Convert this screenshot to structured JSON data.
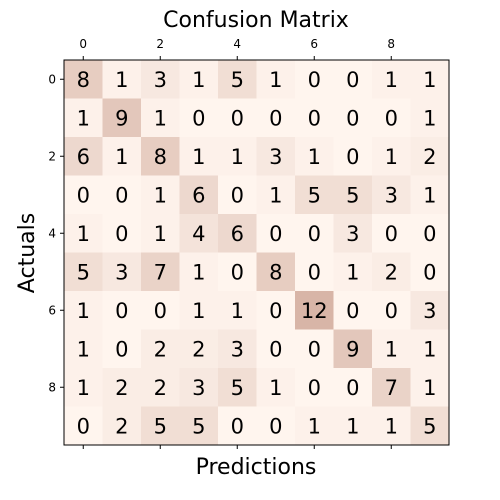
{
  "chart_data": {
    "type": "heatmap",
    "title": "Confusion Matrix",
    "xlabel": "Predictions",
    "ylabel": "Actuals",
    "x_ticks": [
      "0",
      "2",
      "4",
      "6",
      "8"
    ],
    "y_ticks": [
      "0",
      "2",
      "4",
      "6",
      "8"
    ],
    "x_tick_positions": [
      0,
      2,
      4,
      6,
      8
    ],
    "y_tick_positions": [
      0,
      2,
      4,
      6,
      8
    ],
    "x_axis_position": "top",
    "bottom_ticks_without_labels": [
      0,
      2,
      4,
      6,
      8
    ],
    "colormap": {
      "min_color": "#fff5ee",
      "max_color": "#d8b5a7",
      "peak_color": "#d8b5a7",
      "vmin": 0,
      "vmax": 12
    },
    "grid": false,
    "values": [
      [
        8,
        1,
        3,
        1,
        5,
        1,
        0,
        0,
        1,
        1
      ],
      [
        1,
        9,
        1,
        0,
        0,
        0,
        0,
        0,
        0,
        1
      ],
      [
        6,
        1,
        8,
        1,
        1,
        3,
        1,
        0,
        1,
        2
      ],
      [
        0,
        0,
        1,
        6,
        0,
        1,
        5,
        5,
        3,
        1
      ],
      [
        1,
        0,
        1,
        4,
        6,
        0,
        0,
        3,
        0,
        0
      ],
      [
        5,
        3,
        7,
        1,
        0,
        8,
        0,
        1,
        2,
        0
      ],
      [
        1,
        0,
        0,
        1,
        1,
        0,
        12,
        0,
        0,
        3
      ],
      [
        1,
        0,
        2,
        2,
        3,
        0,
        0,
        9,
        1,
        1
      ],
      [
        1,
        2,
        2,
        3,
        5,
        1,
        0,
        0,
        7,
        1
      ],
      [
        0,
        2,
        5,
        5,
        0,
        0,
        1,
        1,
        1,
        5
      ]
    ]
  }
}
